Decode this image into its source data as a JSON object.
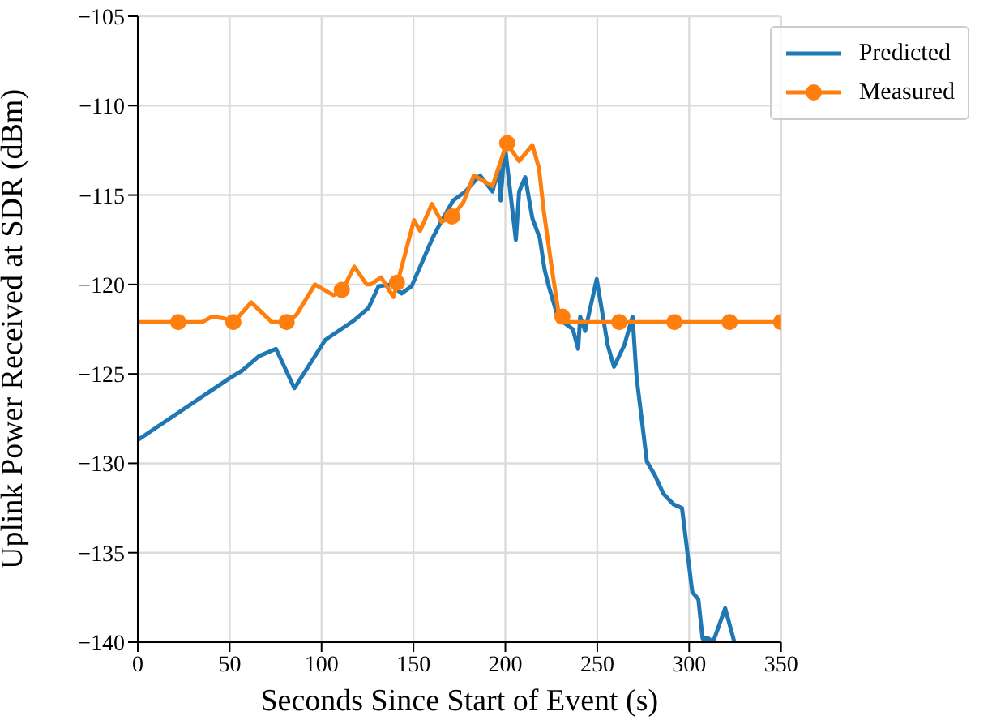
{
  "chart_data": {
    "type": "line",
    "xlabel": "Seconds Since Start of Event (s)",
    "ylabel": "Uplink Power Received at SDR (dBm)",
    "xlim": [
      0,
      350
    ],
    "xticks": [
      0,
      50,
      100,
      150,
      200,
      250,
      300,
      350
    ],
    "ylim": [
      -140,
      -105
    ],
    "yticks": [
      {
        "value": -140,
        "label": "−140"
      },
      {
        "value": -135,
        "label": "−135"
      },
      {
        "value": -130,
        "label": "−130"
      },
      {
        "value": -125,
        "label": "−125"
      },
      {
        "value": -120,
        "label": "−120"
      },
      {
        "value": -115,
        "label": "−115"
      },
      {
        "value": -110,
        "label": "−110"
      },
      {
        "value": -105,
        "label": "−105"
      }
    ],
    "grid": true,
    "legend": "top right",
    "line_style": "solid",
    "series": [
      {
        "name": "Predicted",
        "color": "#1f77b4",
        "marker": "none",
        "x": [
          0,
          50.5,
          57,
          66,
          75.2,
          85.2,
          102,
          117.8,
          125.6,
          131,
          138,
          143.5,
          149,
          160.4,
          165,
          171.6,
          178.3,
          186.2,
          193,
          196.3,
          197.4,
          199.7,
          205.7,
          207.5,
          210.8,
          214.7,
          218.7,
          221.4,
          223.6,
          228.8,
          236.7,
          239.6,
          240.7,
          243.4,
          249.7,
          255.7,
          259.1,
          264.7,
          269.2,
          271.4,
          277,
          281.5,
          286,
          291.6,
          296.1,
          301.7,
          305,
          307.3,
          310.6,
          313,
          319.6,
          324.6
        ],
        "values": [
          -128.7,
          -125.2,
          -124.8,
          -124,
          -123.6,
          -125.8,
          -123.1,
          -122,
          -121.3,
          -120.1,
          -120,
          -120.5,
          -120.1,
          -117.4,
          -116.5,
          -115.3,
          -114.8,
          -113.9,
          -114.8,
          -113.5,
          -115.3,
          -112.2,
          -117.5,
          -114.8,
          -114,
          -116.3,
          -117.4,
          -119.2,
          -120.1,
          -121.9,
          -122.5,
          -123.6,
          -121.8,
          -122.6,
          -119.7,
          -123.4,
          -124.6,
          -123.4,
          -121.8,
          -125.2,
          -129.9,
          -130.7,
          -131.7,
          -132.3,
          -132.5,
          -137.2,
          -137.6,
          -139.8,
          -139.8,
          -140,
          -138.1,
          -140
        ]
      },
      {
        "name": "Measured",
        "color": "#ff7f0e",
        "marker": "none",
        "x": [
          0,
          35,
          40.4,
          47.1,
          52.3,
          61.7,
          72.9,
          80.8,
          86.3,
          96.4,
          106.5,
          111.5,
          117.8,
          124.5,
          126.7,
          132.4,
          139.1,
          141.3,
          150.3,
          153.6,
          160,
          165.3,
          171.1,
          177.2,
          182.8,
          193,
          200.7,
          207.5,
          214.7,
          218.3,
          220.9,
          225.4,
          228.8,
          231,
          234.4,
          350
        ],
        "values": [
          -122.1,
          -122.1,
          -121.8,
          -121.9,
          -122.1,
          -121,
          -122.1,
          -122.1,
          -121.7,
          -120,
          -120.6,
          -120.3,
          -119,
          -120,
          -120,
          -119.6,
          -120.7,
          -119.9,
          -116.4,
          -117,
          -115.5,
          -116.5,
          -116.2,
          -115.4,
          -113.9,
          -114.5,
          -112.1,
          -113.1,
          -112.2,
          -113.5,
          -115.9,
          -119.2,
          -121.5,
          -121.8,
          -122.1,
          -122.1
        ]
      },
      {
        "color": "#ff7f0e",
        "type": "scatter",
        "marker": "circle",
        "x": [
          22,
          52,
          81,
          111,
          141,
          171,
          201,
          231,
          262,
          292,
          322,
          350
        ],
        "values": [
          -122.1,
          -122.1,
          -122.1,
          -120.3,
          -119.9,
          -116.2,
          -112.1,
          -121.8,
          -122.1,
          -122.1,
          -122.1,
          -122.1
        ]
      }
    ]
  }
}
